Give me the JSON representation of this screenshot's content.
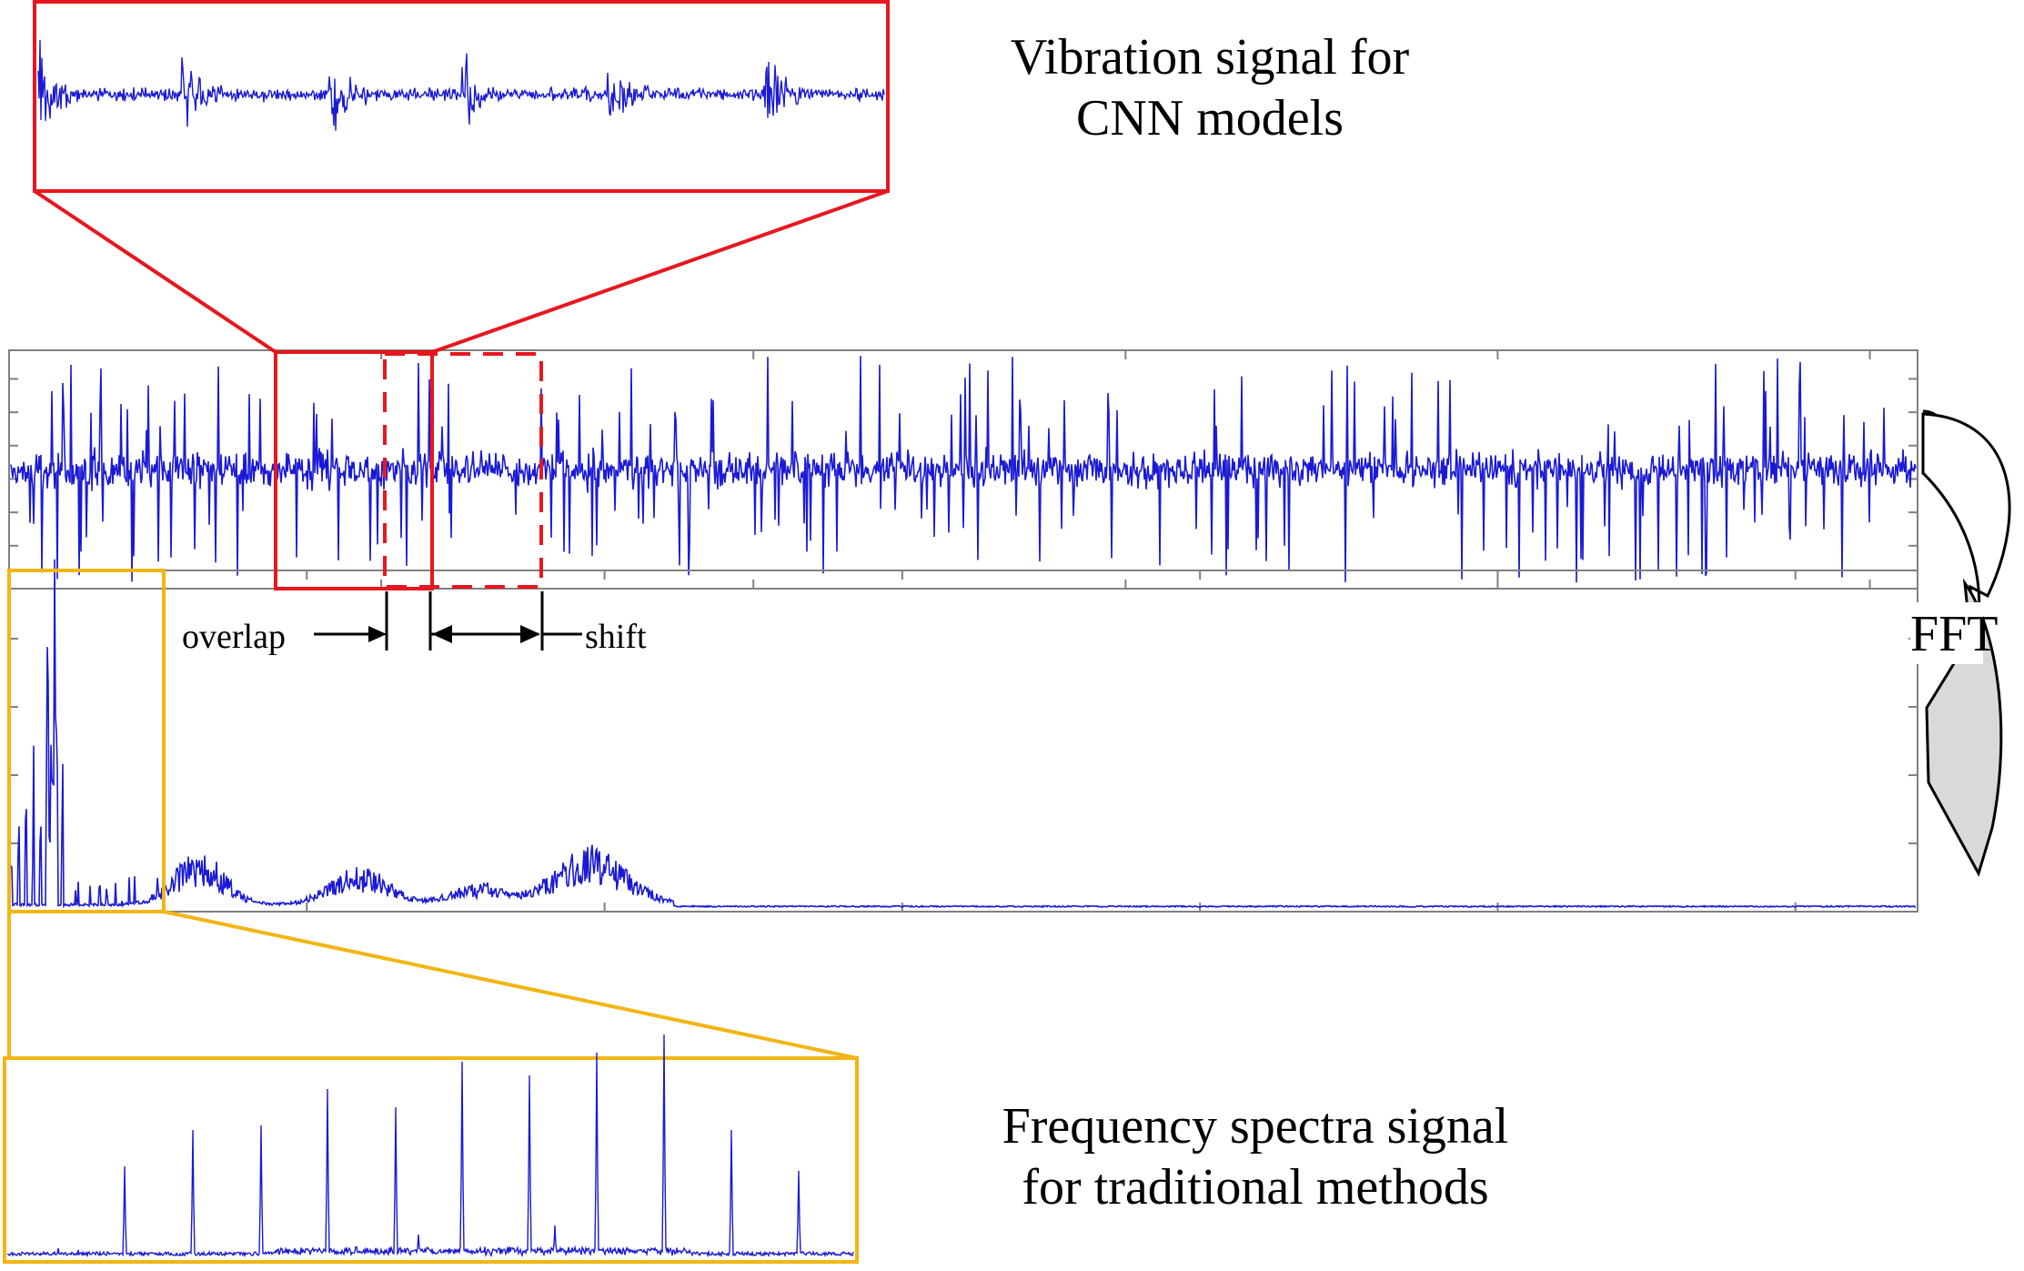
{
  "captions": {
    "vibration_title_line1": "Vibration signal for",
    "vibration_title_line2": "CNN models",
    "spectra_title_line1": "Frequency spectra signal",
    "spectra_title_line2": "for traditional methods"
  },
  "annotations": {
    "overlap": "overlap",
    "shift": "shift",
    "fft": "FFT"
  },
  "colors": {
    "signal": "#1a1ad6",
    "window": "#e8161e",
    "spectrum_zoom": "#f2b515",
    "arrow_fill": "#d9d9d9",
    "frame": "#808080"
  }
}
